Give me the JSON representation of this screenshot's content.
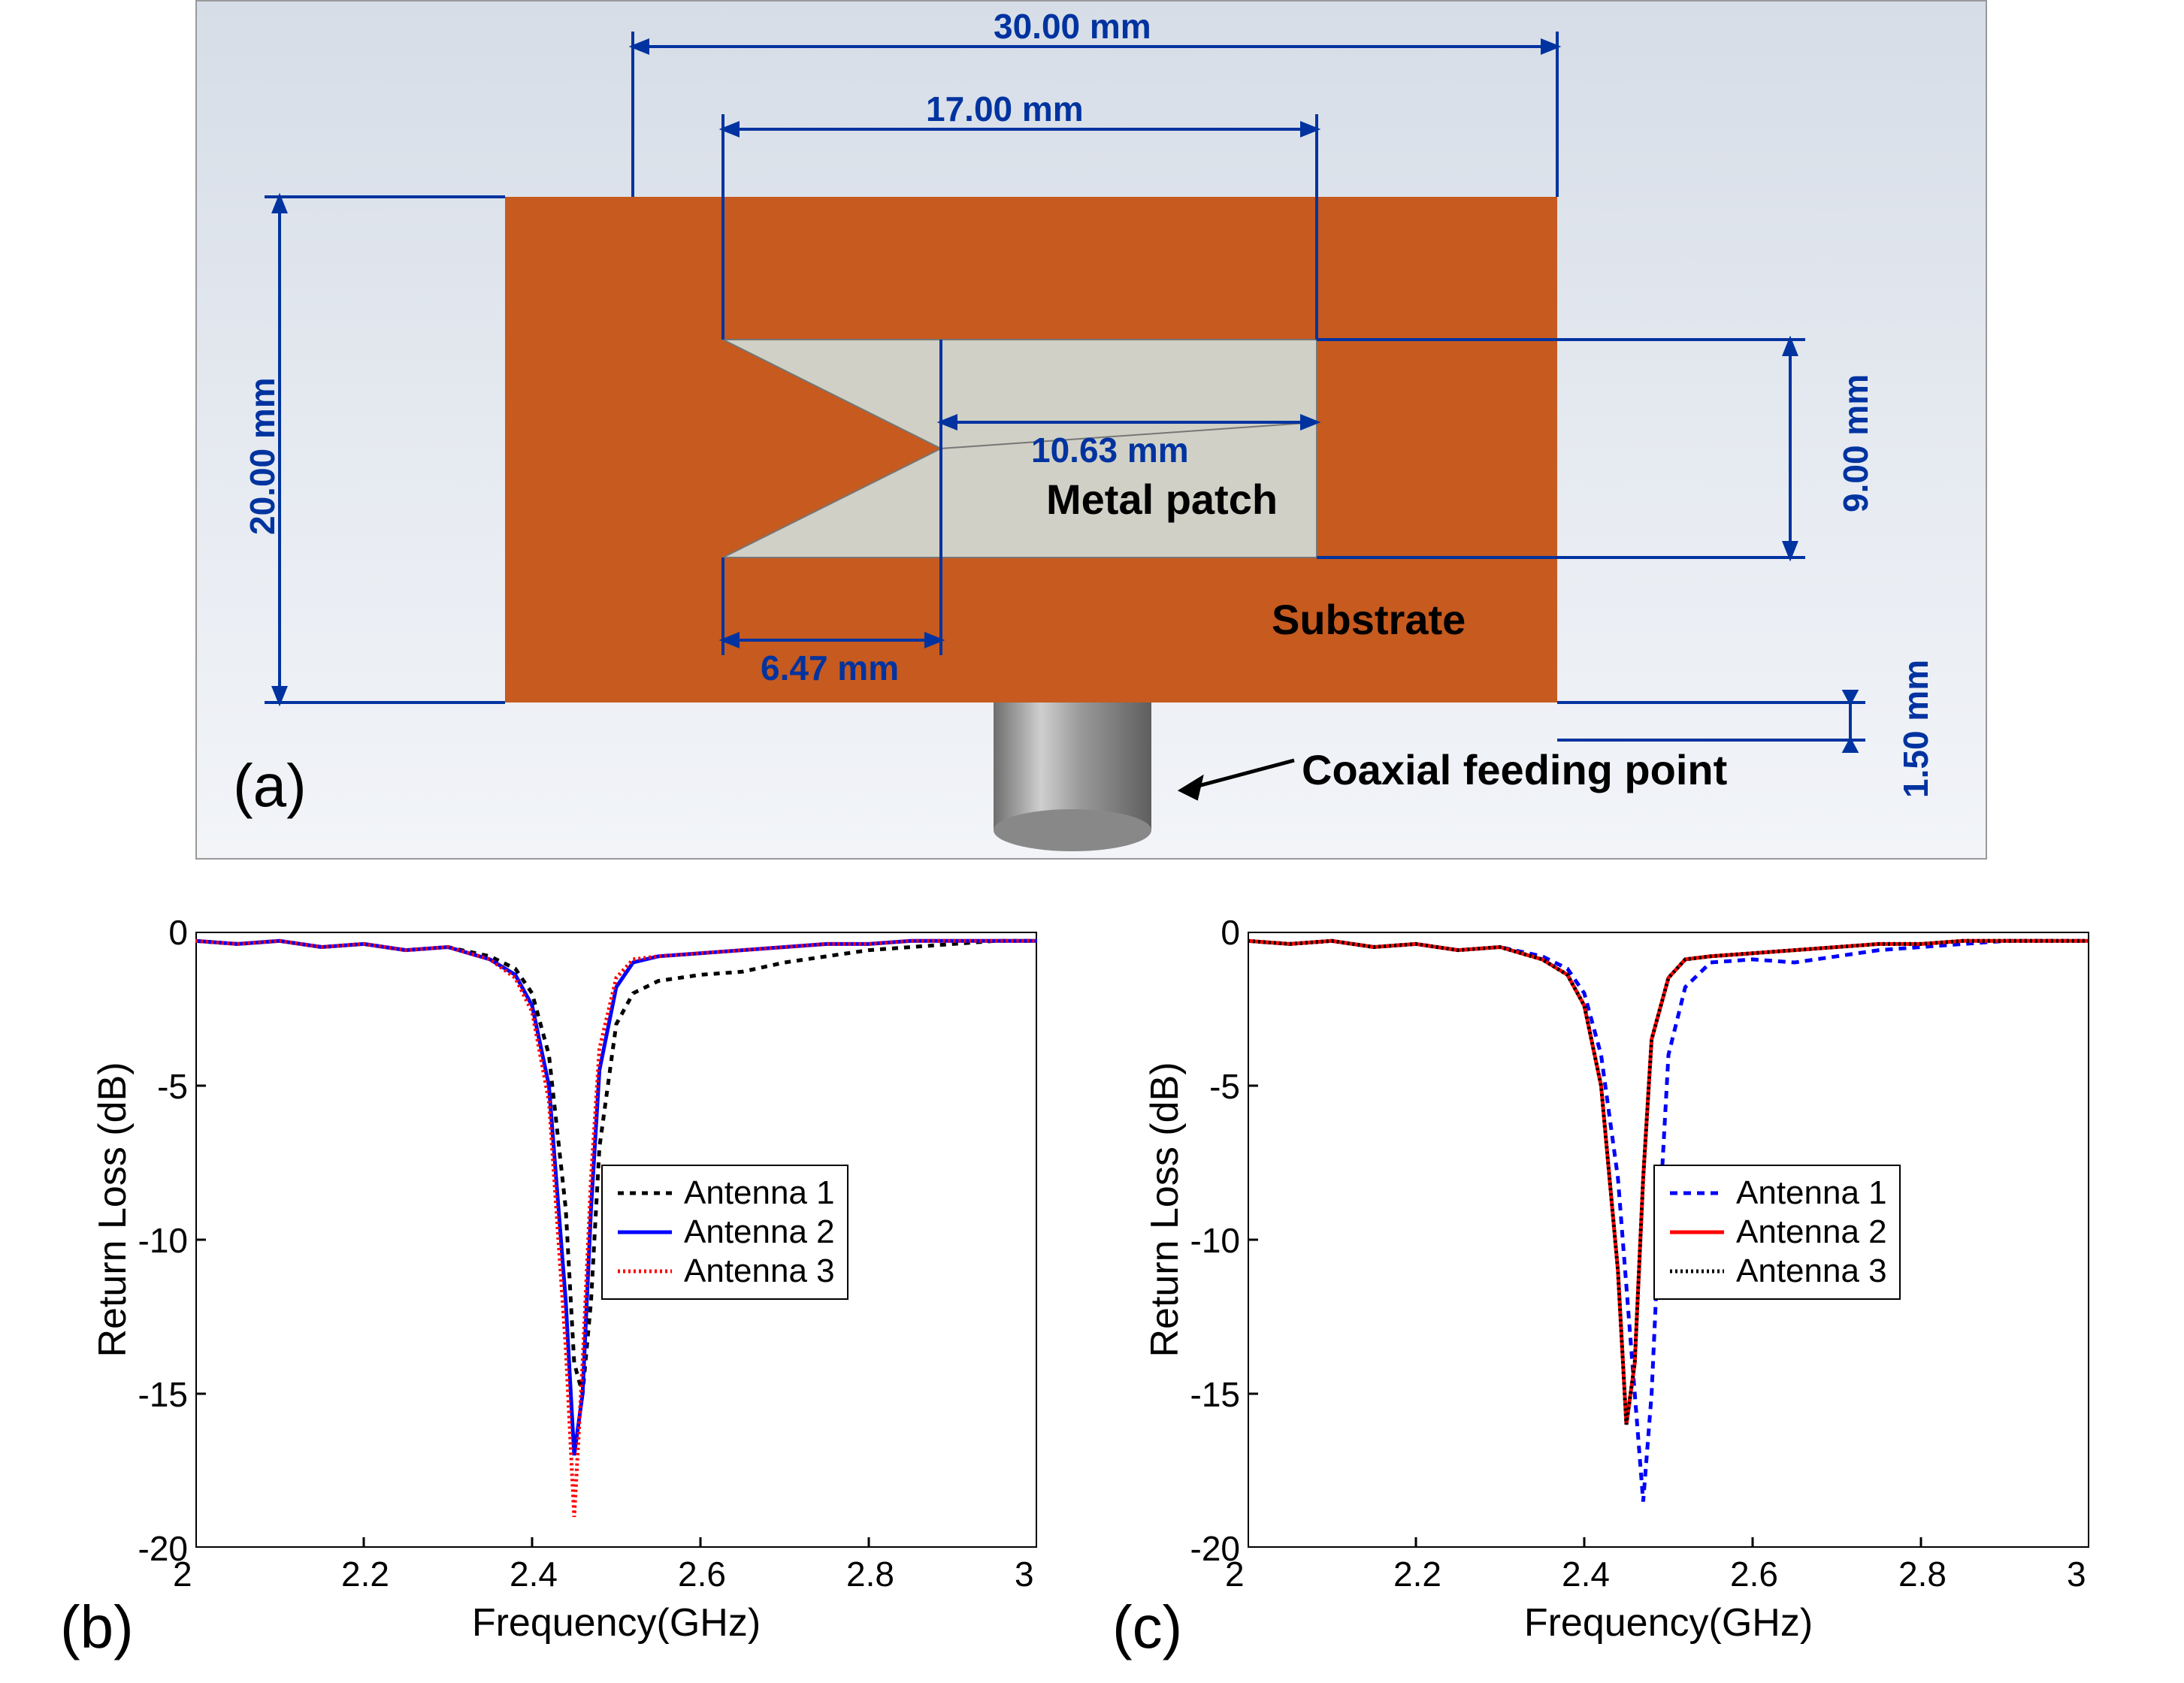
{
  "panel_a": {
    "background_gradient": [
      "#d6dde7",
      "#e8ecf2",
      "#f2f4f8"
    ],
    "substrate_color": "#c65a1f",
    "patch_color": "#d0d0c6",
    "dim_line_color": "#0033a0",
    "dim_label_color": "#0033a0",
    "dim_fontsize": 46,
    "annotations": {
      "metal_patch": "Metal patch",
      "substrate": "Substrate",
      "coax": "Coaxial feeding point"
    },
    "dimensions": {
      "width_mm": "30.00 mm",
      "height_mm": "20.00 mm",
      "patch_width_mm": "17.00 mm",
      "patch_right_mm": "9.00 mm",
      "patch_inner_dim1": "10.63 mm",
      "patch_inner_dim2": "6.47 mm",
      "thickness_mm": "1.50 mm"
    },
    "sublabel": "(a)",
    "coax_color": "#9a9a9a"
  },
  "panel_b": {
    "sublabel": "(b)",
    "type": "line",
    "xlabel": "Frequency(GHz)",
    "ylabel": "Return Loss (dB)",
    "label_fontsize": 52,
    "tick_fontsize": 46,
    "xlim": [
      2.0,
      3.0
    ],
    "ylim": [
      -20,
      0
    ],
    "xticks": [
      2.0,
      2.2,
      2.4,
      2.6,
      2.8,
      3.0
    ],
    "xtick_labels": [
      "2",
      "2.2",
      "2.4",
      "2.6",
      "2.8",
      "3"
    ],
    "yticks": [
      -20,
      -15,
      -10,
      -5,
      0
    ],
    "ytick_labels": [
      "-20",
      "-15",
      "-10",
      "-5",
      "0"
    ],
    "background_color": "#ffffff",
    "axis_color": "#000000",
    "line_width": 5,
    "series": [
      {
        "name": "Antenna 1",
        "color": "#000000",
        "dash": "8,8",
        "x": [
          2.0,
          2.05,
          2.1,
          2.15,
          2.2,
          2.25,
          2.3,
          2.35,
          2.38,
          2.4,
          2.42,
          2.44,
          2.45,
          2.46,
          2.47,
          2.48,
          2.5,
          2.52,
          2.55,
          2.6,
          2.65,
          2.7,
          2.75,
          2.8,
          2.85,
          2.9,
          2.95,
          3.0
        ],
        "y": [
          -0.3,
          -0.4,
          -0.3,
          -0.5,
          -0.4,
          -0.6,
          -0.5,
          -0.8,
          -1.2,
          -2.0,
          -4.0,
          -9.0,
          -14.0,
          -15.0,
          -12.0,
          -7.0,
          -3.0,
          -2.0,
          -1.6,
          -1.4,
          -1.3,
          -1.0,
          -0.8,
          -0.6,
          -0.5,
          -0.4,
          -0.3,
          -0.3
        ]
      },
      {
        "name": "Antenna 2",
        "color": "#0000ff",
        "dash": "",
        "x": [
          2.0,
          2.05,
          2.1,
          2.15,
          2.2,
          2.25,
          2.3,
          2.35,
          2.38,
          2.4,
          2.42,
          2.44,
          2.45,
          2.46,
          2.47,
          2.48,
          2.5,
          2.52,
          2.55,
          2.6,
          2.65,
          2.7,
          2.75,
          2.8,
          2.85,
          2.9,
          2.95,
          3.0
        ],
        "y": [
          -0.3,
          -0.4,
          -0.3,
          -0.5,
          -0.4,
          -0.6,
          -0.5,
          -0.9,
          -1.4,
          -2.4,
          -5.0,
          -12.0,
          -17.0,
          -15.0,
          -9.0,
          -4.5,
          -1.8,
          -1.0,
          -0.8,
          -0.7,
          -0.6,
          -0.5,
          -0.4,
          -0.4,
          -0.3,
          -0.3,
          -0.3,
          -0.3
        ]
      },
      {
        "name": "Antenna 3",
        "color": "#ff0000",
        "dash": "3,4",
        "x": [
          2.0,
          2.05,
          2.1,
          2.15,
          2.2,
          2.25,
          2.3,
          2.35,
          2.38,
          2.4,
          2.42,
          2.44,
          2.45,
          2.46,
          2.47,
          2.48,
          2.5,
          2.52,
          2.55,
          2.6,
          2.65,
          2.7,
          2.75,
          2.8,
          2.85,
          2.9,
          2.95,
          3.0
        ],
        "y": [
          -0.3,
          -0.4,
          -0.3,
          -0.5,
          -0.4,
          -0.6,
          -0.5,
          -0.9,
          -1.5,
          -2.6,
          -5.5,
          -13.5,
          -19.0,
          -14.0,
          -8.0,
          -3.8,
          -1.5,
          -0.9,
          -0.8,
          -0.7,
          -0.6,
          -0.5,
          -0.4,
          -0.4,
          -0.3,
          -0.3,
          -0.3,
          -0.3
        ]
      }
    ],
    "legend": {
      "items": [
        "Antenna 1",
        "Antenna 2",
        "Antenna 3"
      ],
      "border_color": "#000000",
      "background": "#ffffff",
      "fontsize": 44
    }
  },
  "panel_c": {
    "sublabel": "(c)",
    "type": "line",
    "xlabel": "Frequency(GHz)",
    "ylabel": "Return Loss (dB)",
    "label_fontsize": 52,
    "tick_fontsize": 46,
    "xlim": [
      2.0,
      3.0
    ],
    "ylim": [
      -20,
      0
    ],
    "xticks": [
      2.0,
      2.2,
      2.4,
      2.6,
      2.8,
      3.0
    ],
    "xtick_labels": [
      "2",
      "2.2",
      "2.4",
      "2.6",
      "2.8",
      "3"
    ],
    "yticks": [
      -20,
      -15,
      -10,
      -5,
      0
    ],
    "ytick_labels": [
      "-20",
      "-15",
      "-10",
      "-5",
      "0"
    ],
    "background_color": "#ffffff",
    "axis_color": "#000000",
    "line_width": 5,
    "series": [
      {
        "name": "Antenna 1",
        "color": "#0000ff",
        "dash": "10,8",
        "x": [
          2.0,
          2.05,
          2.1,
          2.15,
          2.2,
          2.25,
          2.3,
          2.35,
          2.38,
          2.4,
          2.42,
          2.44,
          2.46,
          2.47,
          2.48,
          2.49,
          2.5,
          2.52,
          2.55,
          2.6,
          2.65,
          2.7,
          2.75,
          2.8,
          2.85,
          2.9,
          2.95,
          3.0
        ],
        "y": [
          -0.3,
          -0.4,
          -0.3,
          -0.5,
          -0.4,
          -0.6,
          -0.5,
          -0.8,
          -1.2,
          -2.0,
          -4.0,
          -8.0,
          -15.0,
          -18.5,
          -15.0,
          -9.0,
          -4.0,
          -1.8,
          -1.0,
          -0.9,
          -1.0,
          -0.8,
          -0.6,
          -0.5,
          -0.4,
          -0.3,
          -0.3,
          -0.3
        ]
      },
      {
        "name": "Antenna 2",
        "color": "#ff0000",
        "dash": "",
        "x": [
          2.0,
          2.05,
          2.1,
          2.15,
          2.2,
          2.25,
          2.3,
          2.35,
          2.38,
          2.4,
          2.42,
          2.44,
          2.45,
          2.46,
          2.47,
          2.48,
          2.5,
          2.52,
          2.55,
          2.6,
          2.65,
          2.7,
          2.75,
          2.8,
          2.85,
          2.9,
          2.95,
          3.0
        ],
        "y": [
          -0.3,
          -0.4,
          -0.3,
          -0.5,
          -0.4,
          -0.6,
          -0.5,
          -0.9,
          -1.4,
          -2.4,
          -5.0,
          -11.0,
          -16.0,
          -14.0,
          -8.0,
          -3.5,
          -1.5,
          -0.9,
          -0.8,
          -0.7,
          -0.6,
          -0.5,
          -0.4,
          -0.4,
          -0.3,
          -0.3,
          -0.3,
          -0.3
        ]
      },
      {
        "name": "Antenna 3",
        "color": "#000000",
        "dash": "3,4",
        "x": [
          2.0,
          2.05,
          2.1,
          2.15,
          2.2,
          2.25,
          2.3,
          2.35,
          2.38,
          2.4,
          2.42,
          2.44,
          2.45,
          2.46,
          2.47,
          2.48,
          2.5,
          2.52,
          2.55,
          2.6,
          2.65,
          2.7,
          2.75,
          2.8,
          2.85,
          2.9,
          2.95,
          3.0
        ],
        "y": [
          -0.3,
          -0.4,
          -0.3,
          -0.5,
          -0.4,
          -0.6,
          -0.5,
          -0.9,
          -1.4,
          -2.4,
          -5.0,
          -11.0,
          -16.0,
          -14.0,
          -8.0,
          -3.5,
          -1.5,
          -0.9,
          -0.8,
          -0.7,
          -0.6,
          -0.5,
          -0.4,
          -0.4,
          -0.3,
          -0.3,
          -0.3,
          -0.3
        ]
      }
    ],
    "legend": {
      "items": [
        "Antenna 1",
        "Antenna 2",
        "Antenna 3"
      ],
      "border_color": "#000000",
      "background": "#ffffff",
      "fontsize": 44
    }
  }
}
